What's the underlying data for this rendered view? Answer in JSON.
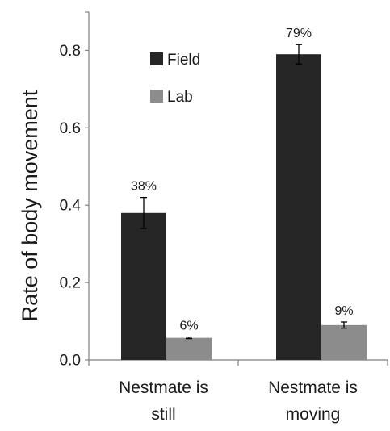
{
  "chart_data": {
    "type": "bar",
    "ylabel": "Rate of body movement",
    "xlabel": "",
    "ylim": [
      0,
      1.0
    ],
    "yticks": [
      "0.0",
      "0.2",
      "0.4",
      "0.6",
      "0.8"
    ],
    "ytick_values": [
      0,
      0.2,
      0.4,
      0.6,
      0.8
    ],
    "categories": [
      [
        "Nestmate is",
        "still"
      ],
      [
        "Nestmate is",
        "moving"
      ]
    ],
    "series": [
      {
        "name": "Field",
        "color": "#262626",
        "values": [
          0.38,
          0.79
        ],
        "errors": [
          0.04,
          0.025
        ],
        "labels": [
          "38%",
          "79%"
        ]
      },
      {
        "name": "Lab",
        "color": "#8c8c8c",
        "values": [
          0.057,
          0.09
        ],
        "errors": [
          0.002,
          0.008
        ],
        "labels": [
          "6%",
          "9%"
        ]
      }
    ],
    "legend_position": "top-left inside plot",
    "grid": false
  }
}
